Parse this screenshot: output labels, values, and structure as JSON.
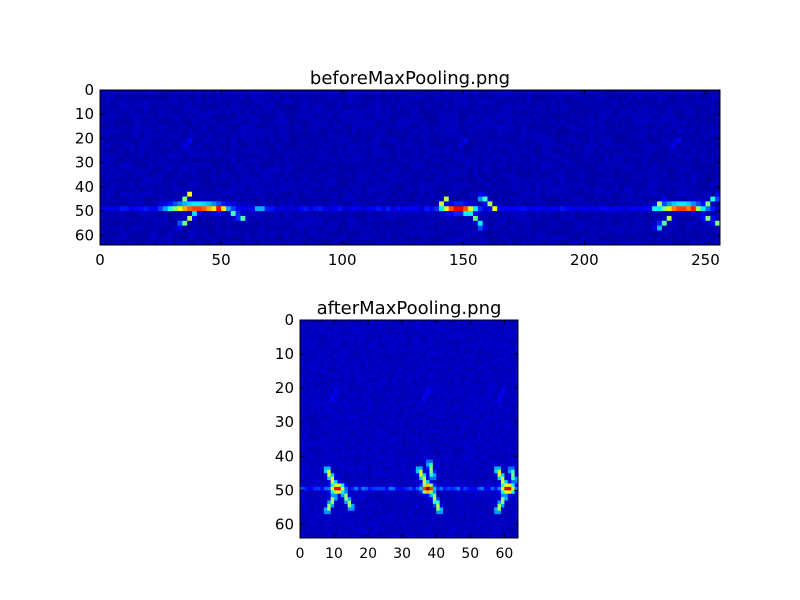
{
  "chart_data": [
    {
      "type": "heatmap",
      "title": "beforeMaxPooling.png",
      "xlim": [
        0,
        256
      ],
      "ylim": [
        64,
        0
      ],
      "x_ticks": [
        0,
        50,
        100,
        150,
        200,
        250
      ],
      "y_ticks": [
        0,
        10,
        20,
        30,
        40,
        50,
        60
      ],
      "colormap": "jet",
      "colormap_stops": [
        "#00007f",
        "#0000ff",
        "#00ffff",
        "#ffff00",
        "#ff0000",
        "#7f0000"
      ],
      "background_level": 0.08,
      "features": [
        {
          "shape": "band",
          "y": 49,
          "x0": 0,
          "x1": 256,
          "level": 0.22
        },
        {
          "shape": "blob",
          "x": 40,
          "y": 48.5,
          "w": 18,
          "h": 2.2,
          "level": 0.82
        },
        {
          "shape": "blob",
          "x": 49,
          "y": 49.5,
          "w": 5,
          "h": 1.5,
          "level": 0.95
        },
        {
          "shape": "stroke",
          "x0": 34,
          "y0": 47,
          "x1": 37,
          "y1": 43,
          "level": 0.6
        },
        {
          "shape": "stroke",
          "x0": 33,
          "y0": 56,
          "x1": 40,
          "y1": 51,
          "level": 0.55
        },
        {
          "shape": "stroke",
          "x0": 54,
          "y0": 50,
          "x1": 60,
          "y1": 54,
          "level": 0.5
        },
        {
          "shape": "blob",
          "x": 66,
          "y": 49,
          "w": 3,
          "h": 1.3,
          "level": 0.4
        },
        {
          "shape": "blob",
          "x": 148,
          "y": 49,
          "w": 10,
          "h": 2.2,
          "level": 0.85
        },
        {
          "shape": "blob",
          "x": 152,
          "y": 50,
          "w": 4,
          "h": 1.4,
          "level": 0.98
        },
        {
          "shape": "stroke",
          "x0": 141,
          "y0": 47,
          "x1": 144,
          "y1": 44,
          "level": 0.55
        },
        {
          "shape": "stroke",
          "x0": 154,
          "y0": 52,
          "x1": 158,
          "y1": 57,
          "level": 0.5
        },
        {
          "shape": "stroke",
          "x0": 157,
          "y0": 44,
          "x1": 164,
          "y1": 50,
          "level": 0.6
        },
        {
          "shape": "blob",
          "x": 240,
          "y": 48.5,
          "w": 14,
          "h": 2.2,
          "level": 0.82
        },
        {
          "shape": "blob",
          "x": 245,
          "y": 49.5,
          "w": 4,
          "h": 1.4,
          "level": 0.96
        },
        {
          "shape": "stroke",
          "x0": 228,
          "y0": 49,
          "x1": 233,
          "y1": 46,
          "level": 0.55
        },
        {
          "shape": "stroke",
          "x0": 230,
          "y0": 57,
          "x1": 236,
          "y1": 52,
          "level": 0.55
        },
        {
          "shape": "stroke",
          "x0": 249,
          "y0": 52,
          "x1": 255,
          "y1": 55,
          "level": 0.5
        },
        {
          "shape": "stroke",
          "x0": 251,
          "y0": 47,
          "x1": 255,
          "y1": 44,
          "level": 0.5
        },
        {
          "shape": "stroke",
          "x0": 34,
          "y0": 25,
          "x1": 38,
          "y1": 20,
          "level": 0.2
        },
        {
          "shape": "stroke",
          "x0": 148,
          "y0": 25,
          "x1": 151,
          "y1": 21,
          "level": 0.18
        },
        {
          "shape": "stroke",
          "x0": 235,
          "y0": 24,
          "x1": 240,
          "y1": 20,
          "level": 0.2
        }
      ]
    },
    {
      "type": "heatmap",
      "title": "afterMaxPooling.png",
      "xlim": [
        0,
        64
      ],
      "ylim": [
        64,
        0
      ],
      "x_ticks": [
        0,
        10,
        20,
        30,
        40,
        50,
        60
      ],
      "y_ticks": [
        0,
        10,
        20,
        30,
        40,
        50,
        60
      ],
      "colormap": "jet",
      "colormap_stops": [
        "#00007f",
        "#0000ff",
        "#00ffff",
        "#ffff00",
        "#ff0000",
        "#7f0000"
      ],
      "background_level": 0.1,
      "features": [
        {
          "shape": "band",
          "y": 49.5,
          "x0": 0,
          "x1": 64,
          "level": 0.3
        },
        {
          "shape": "blob",
          "x": 11,
          "y": 49.5,
          "w": 3,
          "h": 2,
          "level": 0.88
        },
        {
          "shape": "stroke",
          "x0": 8,
          "y0": 44,
          "x1": 10,
          "y1": 48,
          "level": 0.6
        },
        {
          "shape": "stroke",
          "x0": 8,
          "y0": 56,
          "x1": 10,
          "y1": 52,
          "level": 0.55
        },
        {
          "shape": "stroke",
          "x0": 13,
          "y0": 51,
          "x1": 15,
          "y1": 55,
          "level": 0.55
        },
        {
          "shape": "blob",
          "x": 37.5,
          "y": 49.5,
          "w": 2.5,
          "h": 2,
          "level": 0.98
        },
        {
          "shape": "stroke",
          "x0": 35,
          "y0": 44,
          "x1": 37,
          "y1": 48,
          "level": 0.6
        },
        {
          "shape": "stroke",
          "x0": 39,
          "y0": 51,
          "x1": 41,
          "y1": 56,
          "level": 0.55
        },
        {
          "shape": "stroke",
          "x0": 38,
          "y0": 42,
          "x1": 39,
          "y1": 46,
          "level": 0.5
        },
        {
          "shape": "blob",
          "x": 61,
          "y": 49.5,
          "w": 3,
          "h": 2,
          "level": 0.92
        },
        {
          "shape": "stroke",
          "x0": 58,
          "y0": 44,
          "x1": 60,
          "y1": 48,
          "level": 0.6
        },
        {
          "shape": "stroke",
          "x0": 58,
          "y0": 56,
          "x1": 60,
          "y1": 52,
          "level": 0.55
        },
        {
          "shape": "stroke",
          "x0": 62,
          "y0": 44,
          "x1": 63,
          "y1": 47,
          "level": 0.5
        },
        {
          "shape": "stroke",
          "x0": 9,
          "y0": 24,
          "x1": 11,
          "y1": 20,
          "level": 0.2
        },
        {
          "shape": "stroke",
          "x0": 36,
          "y0": 24,
          "x1": 38,
          "y1": 20,
          "level": 0.2
        },
        {
          "shape": "stroke",
          "x0": 58,
          "y0": 24,
          "x1": 60,
          "y1": 20,
          "level": 0.2
        }
      ]
    }
  ]
}
